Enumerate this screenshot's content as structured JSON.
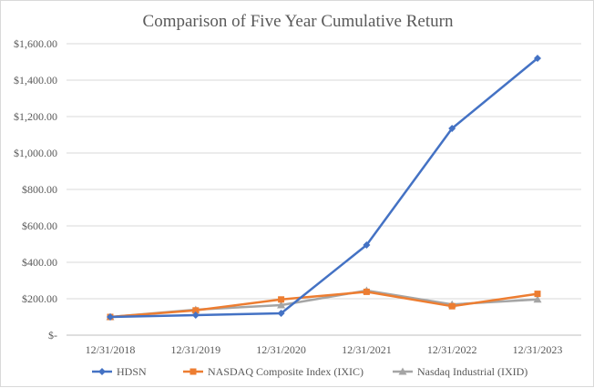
{
  "chart_data": {
    "type": "line",
    "title": "Comparison of Five Year Cumulative  Return",
    "xlabel": "",
    "ylabel": "",
    "categories": [
      "12/31/2018",
      "12/31/2019",
      "12/31/2020",
      "12/31/2021",
      "12/31/2022",
      "12/31/2023"
    ],
    "ylim": [
      0,
      1600
    ],
    "yticks": [
      0,
      200,
      400,
      600,
      800,
      1000,
      1200,
      1400,
      1600
    ],
    "ytick_labels": [
      "$-",
      "$200.00",
      "$400.00",
      "$600.00",
      "$800.00",
      "$1,000.00",
      "$1,200.00",
      "$1,400.00",
      "$1,600.00"
    ],
    "grid": true,
    "legend_position": "bottom",
    "series": [
      {
        "name": "HDSN",
        "color": "#4472c4",
        "marker": "diamond",
        "values": [
          100,
          110,
          120,
          495,
          1135,
          1520
        ]
      },
      {
        "name": "NASDAQ Composite Index (IXIC)",
        "color": "#ed7d31",
        "marker": "square",
        "values": [
          100,
          136,
          196,
          238,
          159,
          227
        ]
      },
      {
        "name": "Nasdaq Industrial (IXID)",
        "color": "#a5a5a5",
        "marker": "triangle",
        "values": [
          100,
          140,
          165,
          245,
          169,
          196
        ]
      }
    ]
  }
}
